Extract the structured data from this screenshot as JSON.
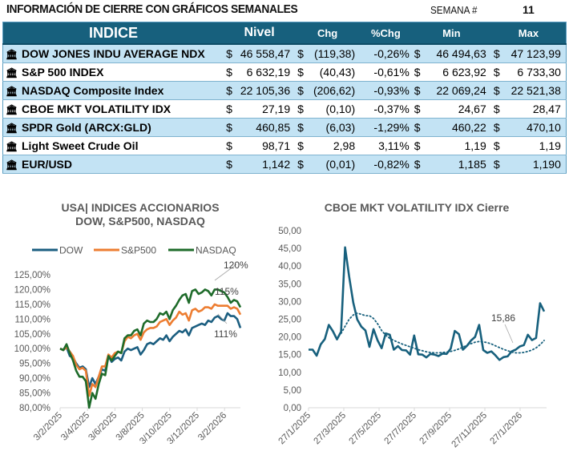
{
  "header": {
    "title": "INFORMACIÓN DE CIERRE CON GRÁFICOS SEMANALES",
    "week_label": "SEMANA #",
    "week_value": "11"
  },
  "table": {
    "columns": [
      "INDICE",
      "Nivel",
      "Chg",
      "%Chg",
      "Min",
      "Max"
    ],
    "icon": "bank-building-icon",
    "rows": [
      {
        "name": "DOW JONES INDU AVERAGE NDX",
        "nivel": "46 558,47",
        "chg": "(119,38)",
        "pct": "-0,26%",
        "min": "46 494,63",
        "max": "47 123,99"
      },
      {
        "name": "S&P 500 INDEX",
        "nivel": "6 632,19",
        "chg": "(40,43)",
        "pct": "-0,61%",
        "min": "6 623,92",
        "max": "6 733,30"
      },
      {
        "name": "NASDAQ Composite Index",
        "nivel": "22 105,36",
        "chg": "(206,62)",
        "pct": "-0,93%",
        "min": "22 069,24",
        "max": "22 521,38"
      },
      {
        "name": "CBOE MKT VOLATILITY IDX",
        "nivel": "27,19",
        "chg": "(0,10)",
        "pct": "-0,37%",
        "min": "24,67",
        "max": "28,47"
      },
      {
        "name": "SPDR Gold (ARCX:GLD)",
        "nivel": "460,85",
        "chg": "(6,03)",
        "pct": "-1,29%",
        "min": "460,22",
        "max": "470,10"
      },
      {
        "name": "Light Sweet Crude Oil",
        "nivel": "98,71",
        "chg": "2,98",
        "pct": "3,11%",
        "min": "1,19",
        "max": "1,19"
      },
      {
        "name": "EUR/USD",
        "nivel": "1,142",
        "chg": "(0,01)",
        "pct": "-0,82%",
        "min": "1,185",
        "max": "1,190"
      }
    ],
    "currency": "$"
  },
  "colors": {
    "header_bg": "#17607d",
    "row_alt": "#c3e3f4",
    "dow": "#1b5e80",
    "sp500": "#ed7d31",
    "nasdaq": "#1e6b2a",
    "vix": "#17607d"
  },
  "chart_data": [
    {
      "type": "line",
      "title": "USA| INDICES ACCIONARIOS",
      "subtitle": "DOW, S&P500, NASDAQ",
      "legend": [
        "DOW",
        "S&P500",
        "NASDAQ"
      ],
      "legend_position": "top",
      "ylim": [
        0.8,
        1.25
      ],
      "yticks": [
        "80,00%",
        "85,00%",
        "90,00%",
        "95,00%",
        "100,00%",
        "105,00%",
        "110,00%",
        "115,00%",
        "120,00%",
        "125,00%"
      ],
      "xticks": [
        "3/2/2025",
        "3/4/2025",
        "3/6/2025",
        "3/8/2025",
        "3/10/2025",
        "3/12/2025",
        "3/2/2026"
      ],
      "annotations": [
        {
          "series": "NASDAQ",
          "label": "120%"
        },
        {
          "series": "S&P500",
          "label": "115%"
        },
        {
          "series": "DOW",
          "label": "111%"
        }
      ],
      "series": [
        {
          "name": "DOW",
          "values": [
            1.0,
            0.995,
            1.005,
            0.975,
            0.97,
            0.95,
            0.935,
            0.94,
            0.93,
            0.87,
            0.9,
            0.88,
            0.905,
            0.93,
            0.925,
            0.975,
            0.955,
            0.965,
            0.97,
            0.96,
            0.99,
            1.0,
            0.995,
            1.0,
            1.005,
            0.98,
            0.995,
            1.015,
            1.02,
            1.015,
            1.025,
            1.035,
            1.03,
            1.045,
            1.025,
            1.04,
            1.05,
            1.06,
            1.055,
            1.065,
            1.045,
            1.07,
            1.075,
            1.08,
            1.085,
            1.08,
            1.095,
            1.09,
            1.105,
            1.11,
            1.1,
            1.095,
            1.12,
            1.11,
            1.11,
            1.1,
            1.07
          ]
        },
        {
          "name": "S&P500",
          "values": [
            1.0,
            0.995,
            1.005,
            0.99,
            0.975,
            0.945,
            0.93,
            0.935,
            0.925,
            0.84,
            0.88,
            0.87,
            0.905,
            0.94,
            0.94,
            0.98,
            0.97,
            0.985,
            0.99,
            0.985,
            1.025,
            1.04,
            1.035,
            1.045,
            1.05,
            1.03,
            1.055,
            1.065,
            1.07,
            1.07,
            1.075,
            1.09,
            1.095,
            1.1,
            1.08,
            1.095,
            1.105,
            1.125,
            1.115,
            1.12,
            1.095,
            1.13,
            1.135,
            1.125,
            1.13,
            1.14,
            1.14,
            1.135,
            1.15,
            1.145,
            1.145,
            1.145,
            1.145,
            1.135,
            1.14,
            1.135,
            1.115
          ]
        },
        {
          "name": "NASDAQ",
          "values": [
            1.0,
            0.995,
            1.015,
            0.985,
            0.96,
            0.925,
            0.905,
            0.905,
            0.89,
            0.8,
            0.85,
            0.83,
            0.88,
            0.915,
            0.91,
            0.975,
            0.96,
            0.975,
            0.99,
            0.985,
            1.035,
            1.045,
            1.045,
            1.06,
            1.065,
            1.045,
            1.085,
            1.095,
            1.09,
            1.09,
            1.1,
            1.12,
            1.115,
            1.125,
            1.1,
            1.13,
            1.145,
            1.165,
            1.18,
            1.185,
            1.155,
            1.195,
            1.2,
            1.185,
            1.19,
            1.2,
            1.195,
            1.18,
            1.2,
            1.2,
            1.195,
            1.19,
            1.175,
            1.155,
            1.165,
            1.16,
            1.14
          ]
        }
      ]
    },
    {
      "type": "line",
      "title": "CBOE MKT VOLATILITY IDX Cierre",
      "ylim": [
        0,
        50
      ],
      "yticks": [
        "0,00",
        "5,00",
        "10,00",
        "15,00",
        "20,00",
        "25,00",
        "30,00",
        "35,00",
        "40,00",
        "45,00",
        "50,00"
      ],
      "xticks": [
        "27/1/2025",
        "27/3/2025",
        "27/5/2025",
        "27/7/2025",
        "27/9/2025",
        "27/11/2025",
        "27/1/2026"
      ],
      "annotations": [
        {
          "label": "15,86"
        }
      ],
      "trendline": "polynomial (dotted)",
      "series": [
        {
          "name": "VIX",
          "values": [
            16.4,
            16.4,
            14.7,
            17.9,
            19.4,
            23.4,
            21.6,
            19.3,
            21.5,
            45.3,
            37.0,
            29.7,
            24.9,
            22.9,
            21.8,
            17.2,
            22.2,
            19.0,
            16.8,
            21.0,
            20.6,
            16.4,
            17.4,
            16.3,
            16.2,
            15.0,
            20.4,
            15.1,
            15.0,
            14.2,
            15.2,
            15.0,
            14.6,
            15.3,
            15.2,
            16.7,
            21.7,
            20.8,
            16.4,
            17.5,
            19.0,
            20.0,
            23.4,
            16.3,
            15.5,
            15.9,
            14.8,
            13.5,
            14.3,
            14.5,
            15.9,
            16.4,
            17.3,
            17.7,
            20.6,
            19.1,
            19.7,
            29.5,
            27.2
          ]
        },
        {
          "name": "Tendencia",
          "style": "dotted",
          "values": [
            null,
            null,
            null,
            null,
            null,
            null,
            null,
            null,
            21.0,
            23.0,
            25.0,
            26.2,
            26.7,
            26.4,
            26.0,
            26.0,
            25.2,
            23.7,
            21.8,
            20.5,
            19.6,
            19.0,
            18.5,
            18.0,
            17.6,
            17.2,
            16.8,
            16.4,
            16.1,
            15.8,
            15.6,
            15.5,
            15.5,
            15.6,
            15.7,
            15.9,
            16.2,
            16.6,
            17.1,
            17.6,
            18.1,
            18.5,
            18.7,
            18.6,
            18.4,
            18.0,
            17.5,
            17.0,
            16.5,
            16.1,
            15.7,
            15.5,
            15.5,
            15.6,
            15.9,
            16.3,
            16.9,
            17.8,
            19.0
          ]
        }
      ]
    }
  ]
}
